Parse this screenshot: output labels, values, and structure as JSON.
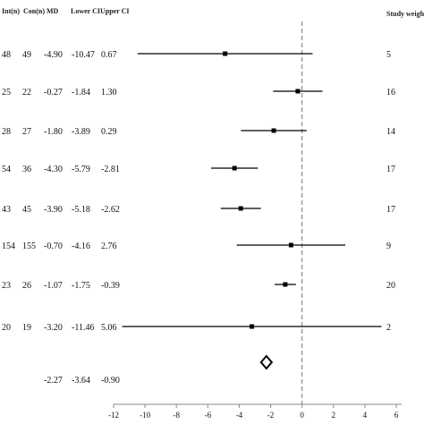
{
  "chart_data": {
    "type": "forest",
    "columns": {
      "int_n": "Int(n)",
      "con_n": "Con(n)",
      "md": "MD",
      "lower_ci": "Lower CI",
      "upper_ci": "Upper CI",
      "weight": "Study weight"
    },
    "rows": [
      {
        "int_n": "48",
        "con_n": "49",
        "md": "-4.90",
        "lower_ci": "-10.47",
        "upper_ci": "0.67",
        "weight": "5",
        "md_value": -4.9,
        "lo_value": -10.47,
        "hi_value": 0.67
      },
      {
        "int_n": "25",
        "con_n": "22",
        "md": "-0.27",
        "lower_ci": "-1.84",
        "upper_ci": "1.30",
        "weight": "16",
        "md_value": -0.27,
        "lo_value": -1.84,
        "hi_value": 1.3
      },
      {
        "int_n": "28",
        "con_n": "27",
        "md": "-1.80",
        "lower_ci": "-3.89",
        "upper_ci": "0.29",
        "weight": "14",
        "md_value": -1.8,
        "lo_value": -3.89,
        "hi_value": 0.29
      },
      {
        "int_n": "54",
        "con_n": "36",
        "md": "-4.30",
        "lower_ci": "-5.79",
        "upper_ci": "-2.81",
        "weight": "17",
        "md_value": -4.3,
        "lo_value": -5.79,
        "hi_value": -2.81
      },
      {
        "int_n": "43",
        "con_n": "45",
        "md": "-3.90",
        "lower_ci": "-5.18",
        "upper_ci": "-2.62",
        "weight": "17",
        "md_value": -3.9,
        "lo_value": -5.18,
        "hi_value": -2.62
      },
      {
        "int_n": "154",
        "con_n": "155",
        "md": "-0.70",
        "lower_ci": "-4.16",
        "upper_ci": "2.76",
        "weight": "9",
        "md_value": -0.7,
        "lo_value": -4.16,
        "hi_value": 2.76
      },
      {
        "int_n": "23",
        "con_n": "26",
        "md": "-1.07",
        "lower_ci": "-1.75",
        "upper_ci": "-0.39",
        "weight": "20",
        "md_value": -1.07,
        "lo_value": -1.75,
        "hi_value": -0.39
      },
      {
        "int_n": "20",
        "con_n": "19",
        "md": "-3.20",
        "lower_ci": "-11.46",
        "upper_ci": "5.06",
        "weight": "2",
        "md_value": -3.2,
        "lo_value": -11.46,
        "hi_value": 5.06
      }
    ],
    "pooled": {
      "md": "-2.27",
      "lower_ci": "-3.64",
      "upper_ci": "-0.90",
      "md_value": -2.27,
      "lo_value": -3.64,
      "hi_value": -0.9
    },
    "x_ticks": [
      "-12",
      "-10",
      "-8",
      "-6",
      "-4",
      "-2",
      "0",
      "2",
      "4",
      "6"
    ],
    "xlim": [
      -12,
      6
    ],
    "reference_line": 0,
    "xlabel": "",
    "ylabel": "",
    "title": ""
  }
}
